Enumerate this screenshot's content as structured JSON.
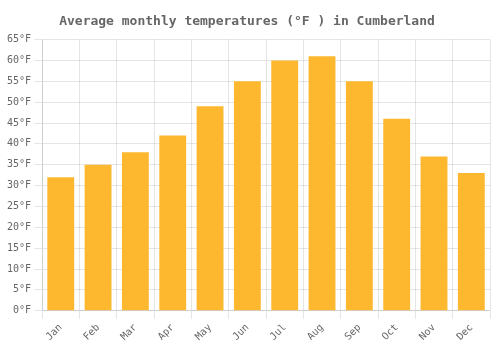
{
  "chart_data": {
    "type": "bar",
    "title": "Average monthly temperatures (°F ) in Cumberland",
    "categories": [
      "Jan",
      "Feb",
      "Mar",
      "Apr",
      "May",
      "Jun",
      "Jul",
      "Aug",
      "Sep",
      "Oct",
      "Nov",
      "Dec"
    ],
    "values": [
      32,
      35,
      38,
      42,
      49,
      55,
      60,
      61,
      55,
      46,
      37,
      33
    ],
    "color": "#FDB830",
    "ylim": [
      0,
      65
    ],
    "yticks": [
      {
        "value": 0,
        "label": "0°F"
      },
      {
        "value": 5,
        "label": "5°F"
      },
      {
        "value": 10,
        "label": "10°F"
      },
      {
        "value": 15,
        "label": "15°F"
      },
      {
        "value": 20,
        "label": "20°F"
      },
      {
        "value": 25,
        "label": "25°F"
      },
      {
        "value": 30,
        "label": "30°F"
      },
      {
        "value": 35,
        "label": "35°F"
      },
      {
        "value": 40,
        "label": "40°F"
      },
      {
        "value": 45,
        "label": "45°F"
      },
      {
        "value": 50,
        "label": "50°F"
      },
      {
        "value": 55,
        "label": "55°F"
      },
      {
        "value": 60,
        "label": "60°F"
      },
      {
        "value": 65,
        "label": "65°F"
      }
    ],
    "grid": true
  }
}
